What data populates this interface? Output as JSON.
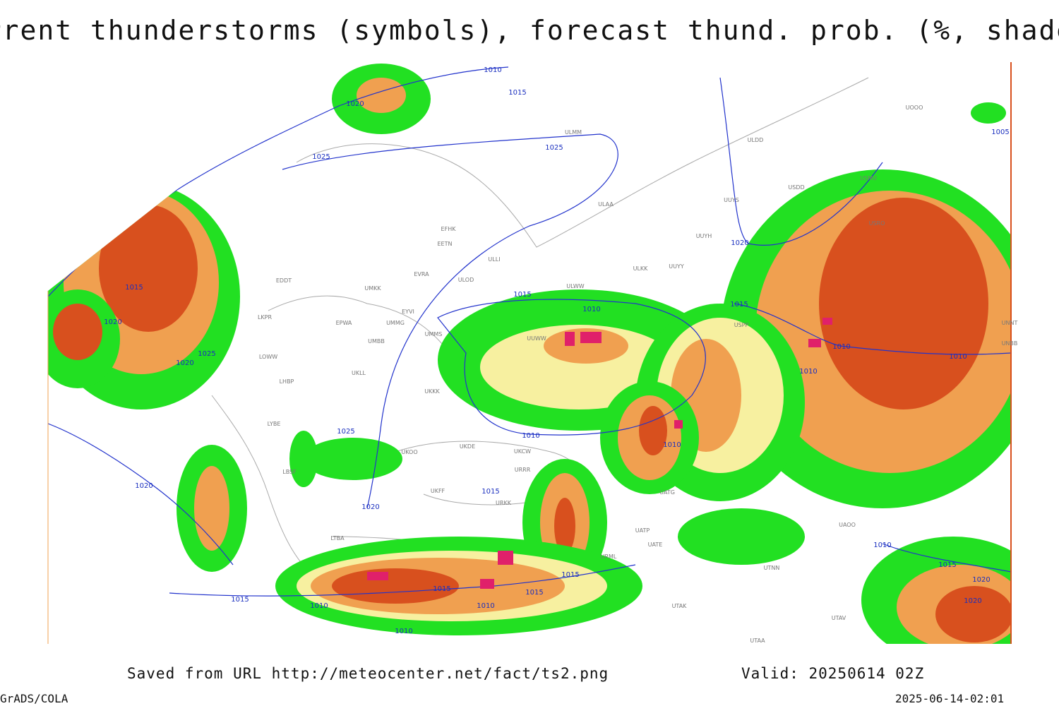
{
  "header": {
    "title": "Current thunderstorms (symbols), forecast thund. prob. (%, shaded)"
  },
  "footer": {
    "source": "Saved from URL http://meteocenter.net/fact/ts2.png",
    "valid": "Valid: 20250614 02Z",
    "software": "GrADS/COLA",
    "timestamp": "2025-06-14-02:01"
  },
  "isobar_labels": [
    1010,
    1015,
    1020,
    1025,
    1025,
    1015,
    1020,
    1025,
    1020,
    1015,
    1010,
    1020,
    1015,
    1005,
    1010,
    1010,
    1010,
    1010,
    1010,
    1025,
    1020,
    1015,
    1020,
    1015,
    1010,
    1015,
    1010,
    1015,
    1015,
    1010,
    1010,
    1015,
    1020,
    1020
  ],
  "station_labels": [
    "ULMM",
    "ULDD",
    "USDD",
    "USMU",
    "UUYS",
    "ULAA",
    "UUYH",
    "USRO",
    "EFHK",
    "EETN",
    "ULLI",
    "ULKK",
    "UUYY",
    "EVRA",
    "ULOD",
    "EDDT",
    "UMKK",
    "ULWW",
    "EYVI",
    "UMMG",
    "EPWA",
    "LKPR",
    "UMMS",
    "UMBB",
    "UUWW",
    "USPP",
    "LOWW",
    "UKLL",
    "LHBP",
    "UKKK",
    "LYBE",
    "UKOO",
    "UKDE",
    "UKCW",
    "URRR",
    "LBSF",
    "UKFF",
    "URKK",
    "UATG",
    "UATP",
    "UATE",
    "UTNN",
    "UTAK",
    "UTAV",
    "UTAA",
    "LTBA",
    "UAOO",
    "URML",
    "UNNT",
    "UNBB",
    "UOOO"
  ]
}
